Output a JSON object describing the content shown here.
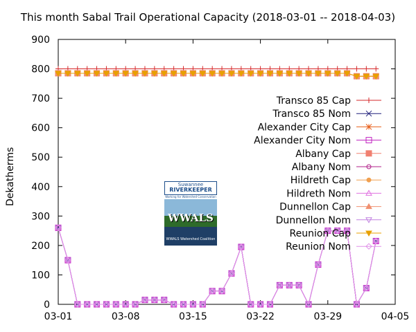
{
  "chart_data": {
    "type": "line",
    "title": "This month Sabal Trail Operational Capacity (2018-03-01 -- 2018-04-03)",
    "ylabel": "Dekatherms",
    "ylim": [
      0,
      900
    ],
    "yticks": [
      "0",
      "100",
      "200",
      "300",
      "400",
      "500",
      "600",
      "700",
      "800",
      "900"
    ],
    "xlim": [
      "2018-03-01",
      "2018-04-05"
    ],
    "xticks": [
      {
        "date": "2018-03-01",
        "label": "03-01"
      },
      {
        "date": "2018-03-08",
        "label": "03-08"
      },
      {
        "date": "2018-03-15",
        "label": "03-15"
      },
      {
        "date": "2018-03-22",
        "label": "03-22"
      },
      {
        "date": "2018-03-29",
        "label": "03-29"
      },
      {
        "date": "2018-04-05",
        "label": "04-05"
      }
    ],
    "grid": false,
    "legend_position": "right",
    "x": [
      "2018-03-01",
      "2018-03-02",
      "2018-03-03",
      "2018-03-04",
      "2018-03-05",
      "2018-03-06",
      "2018-03-07",
      "2018-03-08",
      "2018-03-09",
      "2018-03-10",
      "2018-03-11",
      "2018-03-12",
      "2018-03-13",
      "2018-03-14",
      "2018-03-15",
      "2018-03-16",
      "2018-03-17",
      "2018-03-18",
      "2018-03-19",
      "2018-03-20",
      "2018-03-21",
      "2018-03-22",
      "2018-03-23",
      "2018-03-24",
      "2018-03-25",
      "2018-03-26",
      "2018-03-27",
      "2018-03-28",
      "2018-03-29",
      "2018-03-30",
      "2018-03-31",
      "2018-04-01",
      "2018-04-02",
      "2018-04-03"
    ],
    "series": [
      {
        "name": "Transco 85 Cap",
        "color": "#d62728",
        "marker": "plus",
        "values": [
          800,
          800,
          800,
          800,
          800,
          800,
          800,
          800,
          800,
          800,
          800,
          800,
          800,
          800,
          800,
          800,
          800,
          800,
          800,
          800,
          800,
          800,
          800,
          800,
          800,
          800,
          800,
          800,
          800,
          800,
          800,
          800,
          800,
          800
        ]
      },
      {
        "name": "Transco 85 Nom",
        "color": "#1f1f7a",
        "marker": "x",
        "values": [
          260,
          150,
          0,
          0,
          0,
          0,
          0,
          0,
          0,
          15,
          15,
          15,
          0,
          0,
          0,
          0,
          45,
          45,
          105,
          195,
          0,
          0,
          0,
          65,
          65,
          65,
          0,
          135,
          250,
          250,
          250,
          0,
          55,
          215
        ]
      },
      {
        "name": "Alexander City Cap",
        "color": "#e8601c",
        "marker": "star",
        "values": [
          785,
          785,
          785,
          785,
          785,
          785,
          785,
          785,
          785,
          785,
          785,
          785,
          785,
          785,
          785,
          785,
          785,
          785,
          785,
          785,
          785,
          785,
          785,
          785,
          785,
          785,
          785,
          785,
          785,
          785,
          785,
          775,
          775,
          775
        ]
      },
      {
        "name": "Alexander City Nom",
        "color": "#c020c0",
        "marker": "square-open",
        "values": [
          260,
          150,
          0,
          0,
          0,
          0,
          0,
          0,
          0,
          15,
          15,
          15,
          0,
          0,
          0,
          0,
          45,
          45,
          105,
          195,
          0,
          0,
          0,
          65,
          65,
          65,
          0,
          135,
          250,
          250,
          250,
          0,
          55,
          215
        ]
      },
      {
        "name": "Albany Cap",
        "color": "#f08070",
        "marker": "square",
        "values": [
          785,
          785,
          785,
          785,
          785,
          785,
          785,
          785,
          785,
          785,
          785,
          785,
          785,
          785,
          785,
          785,
          785,
          785,
          785,
          785,
          785,
          785,
          785,
          785,
          785,
          785,
          785,
          785,
          785,
          785,
          785,
          775,
          775,
          775
        ]
      },
      {
        "name": "Albany Nom",
        "color": "#b0208a",
        "marker": "circle",
        "values": [
          260,
          150,
          0,
          0,
          0,
          0,
          0,
          0,
          0,
          15,
          15,
          15,
          0,
          0,
          0,
          0,
          45,
          45,
          105,
          195,
          0,
          0,
          0,
          65,
          65,
          65,
          0,
          135,
          250,
          250,
          250,
          0,
          55,
          215
        ]
      },
      {
        "name": "Hildreth Cap",
        "color": "#f0a050",
        "marker": "dot",
        "values": [
          785,
          785,
          785,
          785,
          785,
          785,
          785,
          785,
          785,
          785,
          785,
          785,
          785,
          785,
          785,
          785,
          785,
          785,
          785,
          785,
          785,
          785,
          785,
          785,
          785,
          785,
          785,
          785,
          785,
          785,
          785,
          775,
          775,
          775
        ]
      },
      {
        "name": "Hildreth Nom",
        "color": "#e070e0",
        "marker": "triangle-open",
        "values": [
          260,
          150,
          0,
          0,
          0,
          0,
          0,
          0,
          0,
          15,
          15,
          15,
          0,
          0,
          0,
          0,
          45,
          45,
          105,
          195,
          0,
          0,
          0,
          65,
          65,
          65,
          0,
          135,
          250,
          250,
          250,
          0,
          55,
          215
        ]
      },
      {
        "name": "Dunnellon Cap",
        "color": "#f09070",
        "marker": "triangle",
        "values": [
          785,
          785,
          785,
          785,
          785,
          785,
          785,
          785,
          785,
          785,
          785,
          785,
          785,
          785,
          785,
          785,
          785,
          785,
          785,
          785,
          785,
          785,
          785,
          785,
          785,
          785,
          785,
          785,
          785,
          785,
          785,
          775,
          775,
          775
        ]
      },
      {
        "name": "Dunnellon Nom",
        "color": "#c080e0",
        "marker": "triangle-down-open",
        "values": [
          260,
          150,
          0,
          0,
          0,
          0,
          0,
          0,
          0,
          15,
          15,
          15,
          0,
          0,
          0,
          0,
          45,
          45,
          105,
          195,
          0,
          0,
          0,
          65,
          65,
          65,
          0,
          135,
          250,
          250,
          250,
          0,
          55,
          215
        ]
      },
      {
        "name": "Reunion Cap",
        "color": "#e8a000",
        "marker": "triangle-down",
        "values": [
          785,
          785,
          785,
          785,
          785,
          785,
          785,
          785,
          785,
          785,
          785,
          785,
          785,
          785,
          785,
          785,
          785,
          785,
          785,
          785,
          785,
          785,
          785,
          785,
          785,
          785,
          785,
          785,
          785,
          785,
          785,
          775,
          775,
          775
        ]
      },
      {
        "name": "Reunion Nom",
        "color": "#e090e8",
        "marker": "diamond-open",
        "values": [
          260,
          150,
          0,
          0,
          0,
          0,
          0,
          0,
          0,
          15,
          15,
          15,
          0,
          0,
          0,
          0,
          45,
          45,
          105,
          195,
          0,
          0,
          0,
          65,
          65,
          65,
          0,
          135,
          250,
          250,
          250,
          0,
          55,
          215
        ]
      }
    ]
  },
  "logo": {
    "line1": "Suwannee",
    "line2": "RIVERKEEPER",
    "sub": "Working for Watershed Conservation",
    "main": "WWALS",
    "coalition": "WWALS Watershed Coalition"
  }
}
